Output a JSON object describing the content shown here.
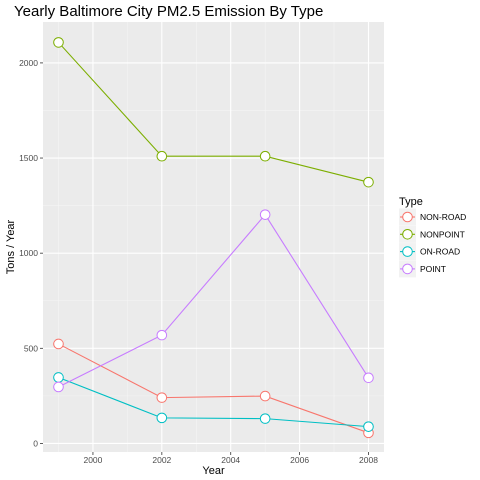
{
  "chart_data": {
    "type": "line",
    "title": "Yearly Baltimore City PM2.5 Emission By Type",
    "xlabel": "Year",
    "ylabel": "Tons / Year",
    "x": [
      1999,
      2002,
      2005,
      2008
    ],
    "xlim": [
      1998.55,
      2008.45
    ],
    "ylim": [
      -45,
      2215
    ],
    "x_ticks": [
      2000,
      2002,
      2004,
      2006,
      2008
    ],
    "y_ticks": [
      0,
      500,
      1000,
      1500,
      2000
    ],
    "x_minor": [
      1999,
      2001,
      2003,
      2005,
      2007
    ],
    "y_minor": [
      250,
      750,
      1250,
      1750
    ],
    "legend_title": "Type",
    "legend_position": "right",
    "grid": true,
    "series": [
      {
        "name": "NON-ROAD",
        "color": "#F8766D",
        "values": [
          522.9,
          240.8,
          248.9,
          55.8
        ]
      },
      {
        "name": "NONPOINT",
        "color": "#7CAE00",
        "values": [
          2107.6,
          1509.5,
          1509.5,
          1373.2
        ]
      },
      {
        "name": "ON-ROAD",
        "color": "#00BFC4",
        "values": [
          346.8,
          134.3,
          130.4,
          88.3
        ]
      },
      {
        "name": "POINT",
        "color": "#C77CFF",
        "values": [
          296.8,
          569.3,
          1202.5,
          344.98
        ]
      }
    ]
  }
}
